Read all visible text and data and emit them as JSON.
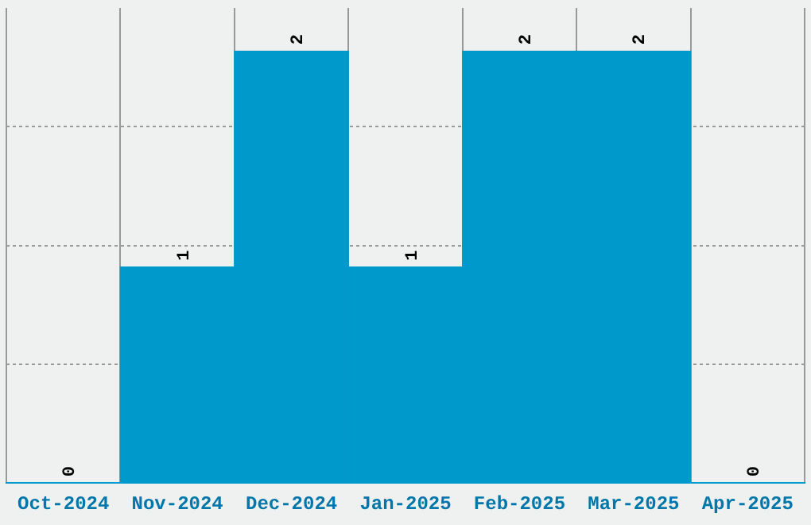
{
  "chart_data": {
    "type": "bar",
    "categories": [
      "Oct-2024",
      "Nov-2024",
      "Dec-2024",
      "Jan-2025",
      "Feb-2025",
      "Mar-2025",
      "Apr-2025"
    ],
    "values": [
      0,
      1,
      2,
      1,
      2,
      2,
      0
    ],
    "color": "#0099cc",
    "data_labels": true,
    "ylim": [
      0,
      2.2
    ],
    "yticks": [
      {
        "value": 0.55,
        "label": null
      },
      {
        "value": 1.1,
        "label": null
      },
      {
        "value": 1.65,
        "label": null
      }
    ],
    "grid": true,
    "tick_labels": "x",
    "legend": false
  }
}
